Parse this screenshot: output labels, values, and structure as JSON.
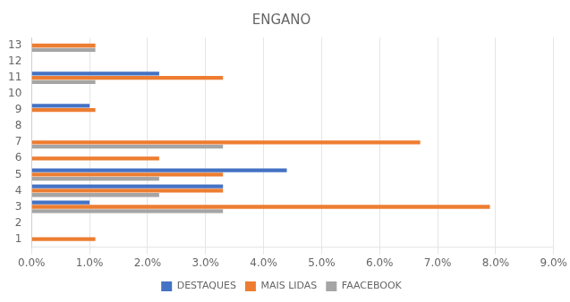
{
  "chart_data": {
    "type": "bar",
    "orientation": "horizontal",
    "title": "ENGANO",
    "categories": [
      1,
      2,
      3,
      4,
      5,
      6,
      7,
      8,
      9,
      10,
      11,
      12,
      13
    ],
    "series": [
      {
        "name": "DESTAQUES",
        "color": "#4472C4",
        "values": [
          0,
          0,
          0.01,
          0.033,
          0.044,
          0,
          0,
          0,
          0.01,
          0,
          0.022,
          0,
          0
        ]
      },
      {
        "name": "MAIS LIDAS",
        "color": "#ED7D31",
        "values": [
          0.011,
          0,
          0.079,
          0.033,
          0.033,
          0.022,
          0.067,
          0,
          0.011,
          0,
          0.033,
          0,
          0.011
        ]
      },
      {
        "name": "FAACEBOOK",
        "color": "#A5A5A5",
        "values": [
          0,
          0,
          0.033,
          0.022,
          0.022,
          0,
          0.033,
          0,
          0,
          0,
          0.011,
          0,
          0.011
        ]
      }
    ],
    "xlim": [
      0,
      0.09
    ],
    "xticks": [
      {
        "value": 0.0,
        "label": "0.0%"
      },
      {
        "value": 0.01,
        "label": "1.0%"
      },
      {
        "value": 0.02,
        "label": "2.0%"
      },
      {
        "value": 0.03,
        "label": "3.0%"
      },
      {
        "value": 0.04,
        "label": "4.0%"
      },
      {
        "value": 0.05,
        "label": "5.0%"
      },
      {
        "value": 0.06,
        "label": "6.0%"
      },
      {
        "value": 0.07,
        "label": "7.0%"
      },
      {
        "value": 0.08,
        "label": "8.0%"
      },
      {
        "value": 0.09,
        "label": "9.0%"
      }
    ],
    "grid": "x",
    "legend": "bottom"
  }
}
